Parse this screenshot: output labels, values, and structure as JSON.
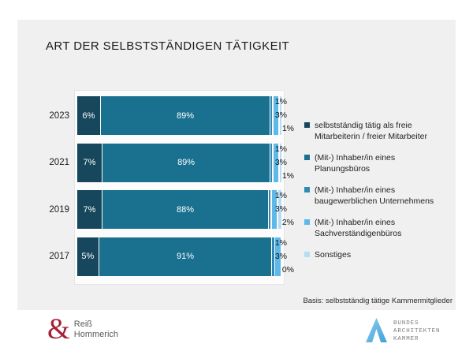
{
  "title": "ART DER SELBSTSTÄNDIGEN TÄTIGKEIT",
  "chart_data": {
    "type": "bar",
    "stacked": true,
    "orientation": "horizontal",
    "value_suffix": "%",
    "xlim": [
      0,
      100
    ],
    "grid": false,
    "legend_position": "right",
    "categories": [
      "2023",
      "2021",
      "2019",
      "2017"
    ],
    "series": [
      {
        "name": "selbstständig tätig als freie Mitarbeiterin / freier Mitarbeiter",
        "color": "#16475c",
        "values": [
          6,
          7,
          7,
          5
        ]
      },
      {
        "name": "(Mit-) Inhaber/in eines Planungsbüros",
        "color": "#19708f",
        "values": [
          89,
          89,
          88,
          91
        ]
      },
      {
        "name": "(Mit-) Inhaber/in eines baugewerblichen Unternehmens",
        "color": "#3089b4",
        "values": [
          1,
          1,
          1,
          1
        ]
      },
      {
        "name": "(Mit-) Inhaber/in eines Sachverständigenbüros",
        "color": "#5db9e9",
        "values": [
          3,
          3,
          3,
          3
        ]
      },
      {
        "name": "Sonstiges",
        "color": "#b7ddf2",
        "values": [
          1,
          1,
          2,
          0
        ]
      }
    ]
  },
  "legend": {
    "items": [
      {
        "label": "selbstständig tätig als freie Mitarbeiterin / freier Mitarbeiter",
        "color": "#16475c"
      },
      {
        "label": "(Mit-) Inhaber/in eines Planungsbüros",
        "color": "#19708f"
      },
      {
        "label": "(Mit-) Inhaber/in eines baugewerblichen Unternehmens",
        "color": "#3089b4"
      },
      {
        "label": "(Mit-) Inhaber/in eines Sachverständigenbüros",
        "color": "#5db9e9"
      },
      {
        "label": "Sonstiges",
        "color": "#b7ddf2"
      }
    ]
  },
  "basis_note": "Basis: selbstständig tätige Kammermitglieder",
  "footer": {
    "left_logo": {
      "symbol": "&",
      "line1": "Reiß",
      "line2": "Hommerich",
      "accent_color": "#a62038"
    },
    "right_logo": {
      "line1": "BUNDES",
      "line2": "ARCHITEKTEN",
      "line3": "KAMMER",
      "accent_color": "#56b3e4"
    }
  },
  "colors": {
    "panel_background": "#f0f0f0",
    "plot_background": "#fcfcfc",
    "page_background": "#ffffff"
  }
}
